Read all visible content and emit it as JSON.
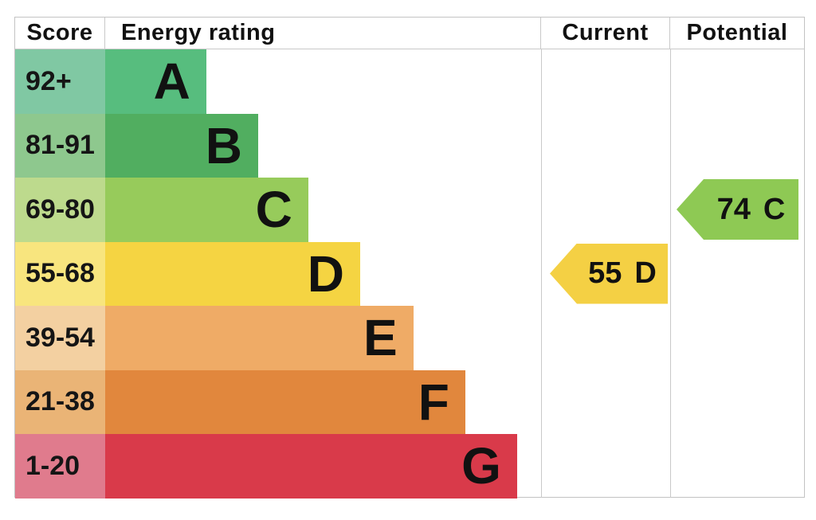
{
  "chart_data": {
    "type": "bar",
    "title": "",
    "columns": {
      "score": "Score",
      "rating": "Energy rating",
      "current": "Current",
      "potential": "Potential"
    },
    "bands": [
      {
        "score": "92+",
        "letter": "A",
        "bar_color": "#57bd7e",
        "score_bg": "#80c8a3",
        "width_pct": 23.2
      },
      {
        "score": "81-91",
        "letter": "B",
        "bar_color": "#51ae60",
        "score_bg": "#8ec88e",
        "width_pct": 35.1
      },
      {
        "score": "69-80",
        "letter": "C",
        "bar_color": "#97cb5b",
        "score_bg": "#bdda8d",
        "width_pct": 46.6
      },
      {
        "score": "55-68",
        "letter": "D",
        "bar_color": "#f5d442",
        "score_bg": "#f8e57e",
        "width_pct": 58.5
      },
      {
        "score": "39-54",
        "letter": "E",
        "bar_color": "#efab66",
        "score_bg": "#f3d0a1",
        "width_pct": 70.7
      },
      {
        "score": "21-38",
        "letter": "F",
        "bar_color": "#e1873d",
        "score_bg": "#eab476",
        "width_pct": 82.6
      },
      {
        "score": "1-20",
        "letter": "G",
        "bar_color": "#d93a4a",
        "score_bg": "#e07b8d",
        "width_pct": 94.5
      }
    ],
    "current": {
      "value": "55",
      "letter": "D",
      "color": "#f4d044",
      "band_index": 3
    },
    "potential": {
      "value": "74",
      "letter": "C",
      "color": "#8ec954",
      "band_index": 2
    }
  }
}
